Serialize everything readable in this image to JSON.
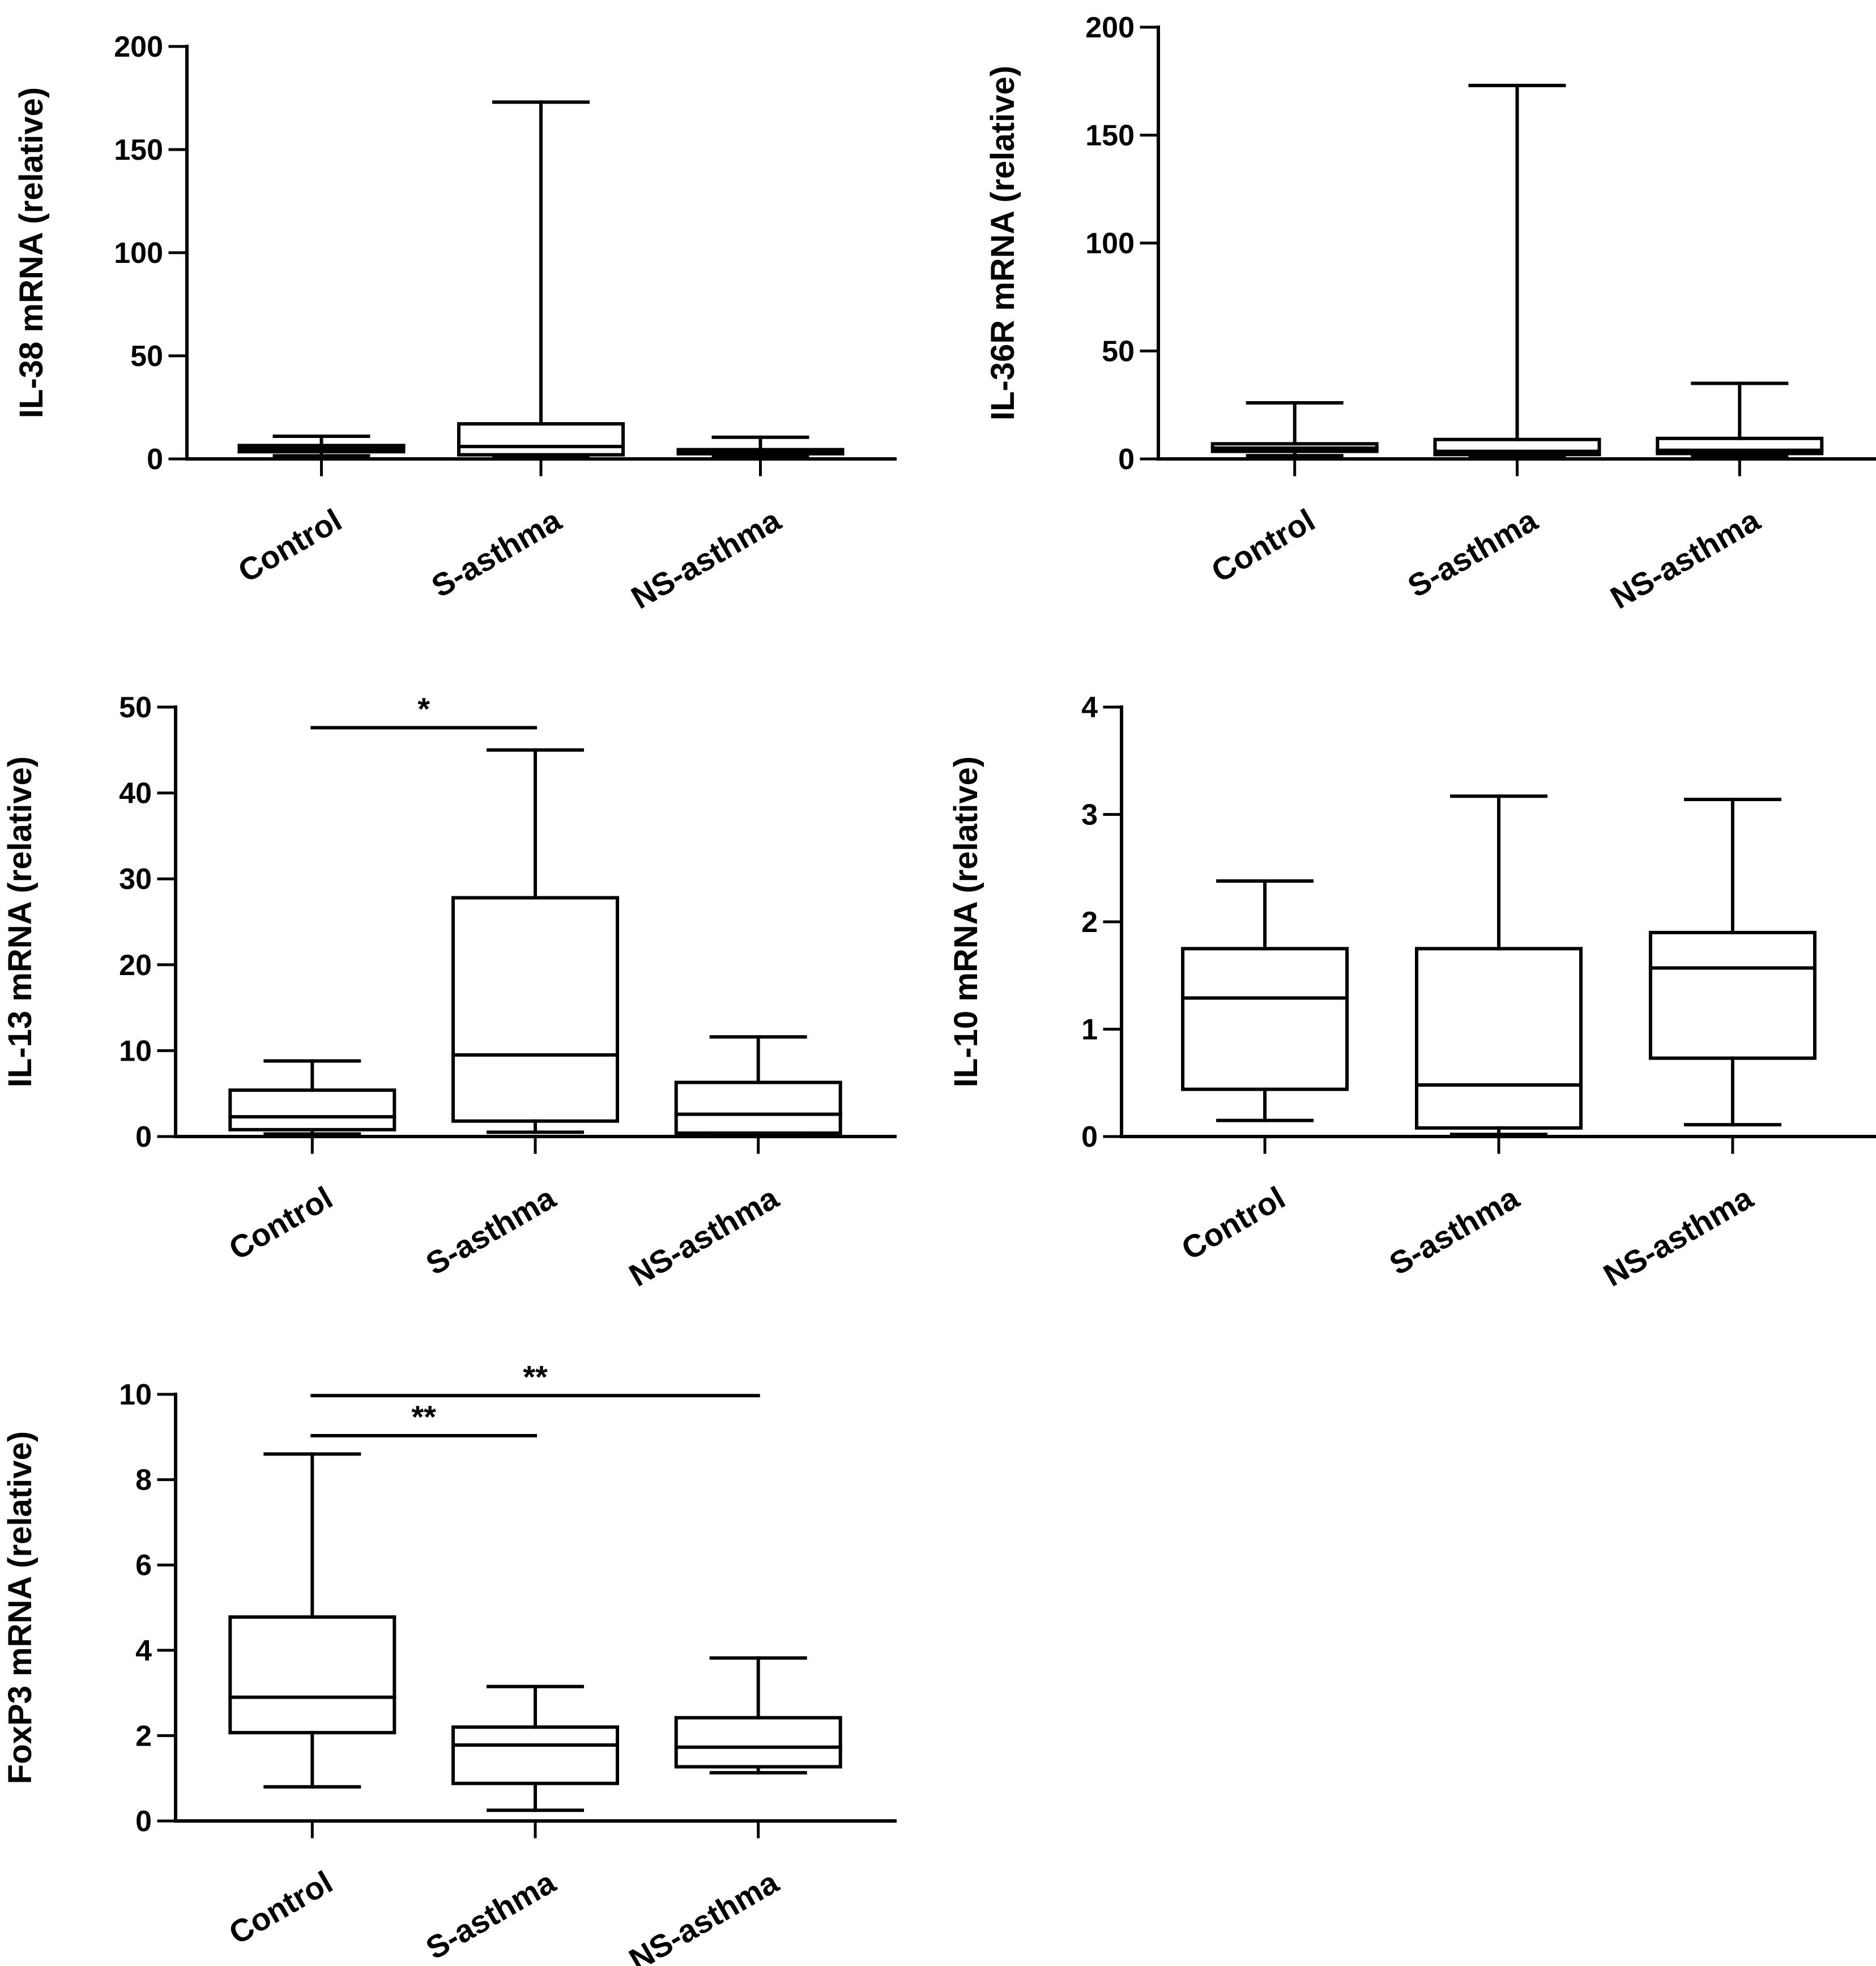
{
  "chart_data": [
    {
      "type": "boxplot",
      "ylabel": "IL-38 mRNA (relative)",
      "ylim": [
        0,
        200
      ],
      "yticks": [
        0,
        50,
        100,
        150,
        200
      ],
      "categories": [
        "Control",
        "S-asthma",
        "NS-asthma"
      ],
      "boxes": [
        {
          "min": 1.5,
          "q1": 3.5,
          "median": 5,
          "q3": 6.5,
          "max": 11
        },
        {
          "min": 1.5,
          "q1": 2,
          "median": 6,
          "q3": 17,
          "max": 173
        },
        {
          "min": 1,
          "q1": 2.5,
          "median": 3.5,
          "q3": 4.5,
          "max": 10.5
        }
      ],
      "significance": []
    },
    {
      "type": "boxplot",
      "ylabel": "IL-36R mRNA (relative)",
      "ylim": [
        0,
        200
      ],
      "yticks": [
        0,
        50,
        100,
        150,
        200
      ],
      "categories": [
        "Control",
        "S-asthma",
        "NS-asthma"
      ],
      "boxes": [
        {
          "min": 1.5,
          "q1": 3.5,
          "median": 5,
          "q3": 7,
          "max": 26
        },
        {
          "min": 1.5,
          "q1": 2,
          "median": 3.5,
          "q3": 9,
          "max": 173
        },
        {
          "min": 1.5,
          "q1": 2.5,
          "median": 4,
          "q3": 9.5,
          "max": 35
        }
      ],
      "significance": []
    },
    {
      "type": "boxplot",
      "ylabel": "IL-13 mRNA (relative)",
      "ylim": [
        0,
        50
      ],
      "yticks": [
        0,
        10,
        20,
        30,
        40,
        50
      ],
      "categories": [
        "Control",
        "S-asthma",
        "NS-asthma"
      ],
      "boxes": [
        {
          "min": 0.3,
          "q1": 0.8,
          "median": 2.3,
          "q3": 5.4,
          "max": 8.8
        },
        {
          "min": 0.5,
          "q1": 1.8,
          "median": 9.5,
          "q3": 27.8,
          "max": 45
        },
        {
          "min": 0.2,
          "q1": 0.4,
          "median": 2.6,
          "q3": 6.3,
          "max": 11.6
        }
      ],
      "significance": [
        {
          "from": 0,
          "to": 1,
          "label": "*",
          "y": 47.6
        }
      ]
    },
    {
      "type": "boxplot",
      "ylabel": "IL-10 mRNA (relative)",
      "ylim": [
        0,
        4
      ],
      "yticks": [
        0,
        1,
        2,
        3,
        4
      ],
      "categories": [
        "Control",
        "S-asthma",
        "NS-asthma"
      ],
      "boxes": [
        {
          "min": 0.15,
          "q1": 0.44,
          "median": 1.29,
          "q3": 1.75,
          "max": 2.38
        },
        {
          "min": 0.02,
          "q1": 0.08,
          "median": 0.48,
          "q3": 1.75,
          "max": 3.17
        },
        {
          "min": 0.11,
          "q1": 0.73,
          "median": 1.57,
          "q3": 1.9,
          "max": 3.14
        }
      ],
      "significance": []
    },
    {
      "type": "boxplot",
      "ylabel": "FoxP3 mRNA (relative)",
      "ylim": [
        0,
        10
      ],
      "yticks": [
        0,
        2,
        4,
        6,
        8,
        10
      ],
      "categories": [
        "Control",
        "S-asthma",
        "NS-asthma"
      ],
      "boxes": [
        {
          "min": 0.8,
          "q1": 2.07,
          "median": 2.9,
          "q3": 4.78,
          "max": 8.6
        },
        {
          "min": 0.25,
          "q1": 0.88,
          "median": 1.78,
          "q3": 2.2,
          "max": 3.15
        },
        {
          "min": 1.13,
          "q1": 1.27,
          "median": 1.73,
          "q3": 2.42,
          "max": 3.82
        }
      ],
      "significance": [
        {
          "from": 0,
          "to": 1,
          "label": "**",
          "y": 9.03
        },
        {
          "from": 0,
          "to": 2,
          "label": "**",
          "y": 9.97
        }
      ]
    }
  ]
}
